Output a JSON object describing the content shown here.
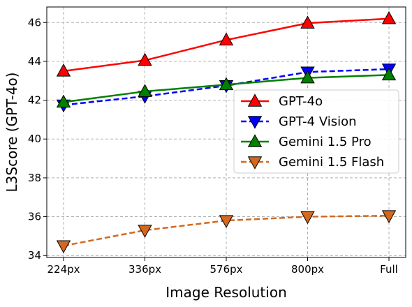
{
  "chart_data": {
    "type": "line",
    "title": "",
    "xlabel": "Image Resolution",
    "ylabel": "L3Score (GPT-4o)",
    "categories": [
      "224px",
      "336px",
      "576px",
      "800px",
      "Full"
    ],
    "ylim": [
      33.9,
      46.8
    ],
    "yticks": [
      34,
      36,
      38,
      40,
      42,
      44,
      46
    ],
    "grid": true,
    "legend_position": "center-right",
    "series": [
      {
        "name": "GPT-4o",
        "values": [
          43.5,
          44.05,
          45.1,
          45.97,
          46.2
        ],
        "color": "#ff0000",
        "dash": "solid",
        "marker": "triangle-up"
      },
      {
        "name": "GPT-4 Vision",
        "values": [
          41.75,
          42.2,
          42.75,
          43.45,
          43.6
        ],
        "color": "#0000ff",
        "dash": "dashed",
        "marker": "triangle-down"
      },
      {
        "name": "Gemini 1.5 Pro",
        "values": [
          41.9,
          42.45,
          42.8,
          43.15,
          43.3
        ],
        "color": "#008000",
        "dash": "solid",
        "marker": "triangle-up"
      },
      {
        "name": "Gemini 1.5 Flash",
        "values": [
          34.5,
          35.3,
          35.8,
          36.0,
          36.05
        ],
        "color": "#d2691e",
        "dash": "dashed",
        "marker": "triangle-down"
      }
    ]
  }
}
